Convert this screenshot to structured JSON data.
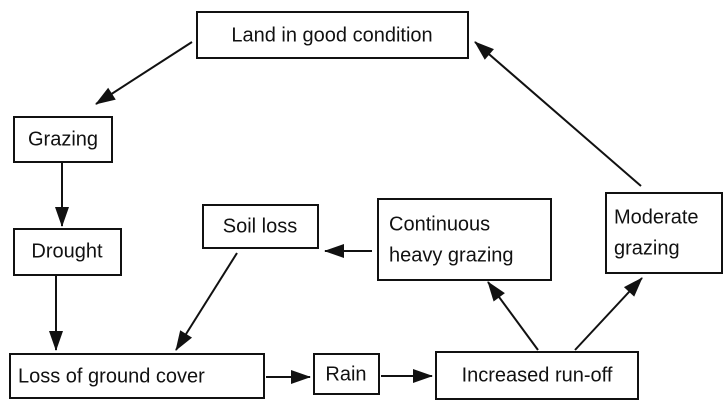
{
  "nodes": [
    {
      "label": "Land in good condition"
    },
    {
      "label": "Grazing"
    },
    {
      "label": "Drought"
    },
    {
      "label": "Soil loss"
    },
    {
      "lines": [
        "Continuous",
        "heavy grazing"
      ]
    },
    {
      "lines": [
        "Moderate",
        "grazing"
      ]
    },
    {
      "label": "Loss of ground cover"
    },
    {
      "label": "Rain"
    },
    {
      "label": "Increased run-off"
    }
  ]
}
